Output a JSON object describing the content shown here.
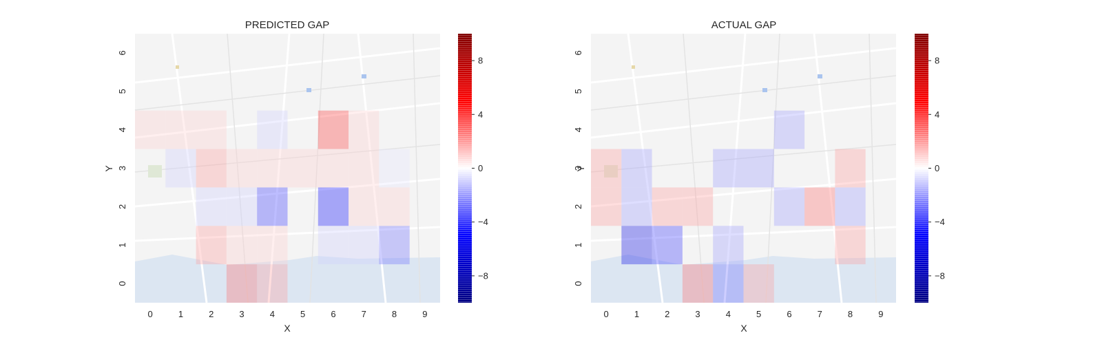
{
  "chart_data": [
    {
      "type": "heatmap",
      "title": "PREDICTED GAP",
      "xlabel": "X",
      "ylabel": "Y",
      "x": [
        0,
        1,
        2,
        3,
        4,
        5,
        6,
        7,
        8,
        9
      ],
      "y": [
        0,
        1,
        2,
        3,
        4,
        5,
        6
      ],
      "background": "city street map",
      "colormap": "seismic",
      "vmin": -10,
      "vmax": 10,
      "colorbar_ticks": [
        "8",
        "4",
        "0",
        "−4",
        "−8"
      ],
      "colorbar_tick_values": [
        8,
        4,
        0,
        -4,
        -8
      ],
      "values": [
        [
          0.0,
          0.0,
          0.0,
          3.0,
          2.0,
          0.0,
          0.0,
          0.0,
          0.0,
          0.0
        ],
        [
          0.0,
          0.0,
          2.0,
          1.0,
          1.0,
          0.0,
          -1.0,
          -1.0,
          -3.0,
          0.0
        ],
        [
          0.0,
          0.0,
          -1.0,
          -1.0,
          -4.0,
          0.0,
          -5.0,
          1.0,
          1.0,
          0.0
        ],
        [
          0.0,
          -1.0,
          2.0,
          1.0,
          1.0,
          1.0,
          1.0,
          1.0,
          -0.5,
          0.0
        ],
        [
          1.0,
          1.0,
          1.0,
          0.0,
          -1.0,
          0.0,
          4.0,
          1.0,
          0.0,
          0.0
        ],
        [
          0.0,
          0.0,
          0.0,
          0.0,
          0.0,
          0.0,
          0.0,
          0.0,
          0.0,
          0.0
        ],
        [
          0.0,
          0.0,
          0.0,
          0.0,
          0.0,
          0.0,
          0.0,
          0.0,
          0.0,
          0.0
        ]
      ]
    },
    {
      "type": "heatmap",
      "title": "ACTUAL GAP",
      "xlabel": "X",
      "ylabel": "Y",
      "x": [
        0,
        1,
        2,
        3,
        4,
        5,
        6,
        7,
        8,
        9
      ],
      "y": [
        0,
        1,
        2,
        3,
        4,
        5,
        6
      ],
      "background": "city street map",
      "colormap": "seismic",
      "vmin": -10,
      "vmax": 10,
      "colorbar_ticks": [
        "8",
        "4",
        "0",
        "−4",
        "−8"
      ],
      "colorbar_tick_values": [
        8,
        4,
        0,
        -4,
        -8
      ],
      "values": [
        [
          0.0,
          0.0,
          0.0,
          3.0,
          -3.0,
          2.0,
          0.0,
          0.0,
          0.0,
          0.0
        ],
        [
          0.0,
          -6.0,
          -4.0,
          0.0,
          -2.0,
          0.0,
          0.0,
          0.0,
          2.0,
          0.0
        ],
        [
          2.0,
          -2.0,
          2.0,
          2.0,
          0.0,
          0.0,
          -2.0,
          3.0,
          -2.0,
          0.0
        ],
        [
          2.0,
          -2.0,
          0.0,
          0.0,
          -2.0,
          -2.0,
          0.0,
          0.0,
          2.0,
          0.0
        ],
        [
          0.0,
          0.0,
          0.0,
          0.0,
          0.0,
          0.0,
          -2.0,
          0.0,
          0.0,
          0.0
        ],
        [
          0.0,
          0.0,
          0.0,
          0.0,
          0.0,
          0.0,
          0.0,
          0.0,
          0.0,
          0.0
        ],
        [
          0.0,
          0.0,
          0.0,
          0.0,
          0.0,
          0.0,
          0.0,
          0.0,
          0.0,
          0.0
        ]
      ]
    }
  ]
}
